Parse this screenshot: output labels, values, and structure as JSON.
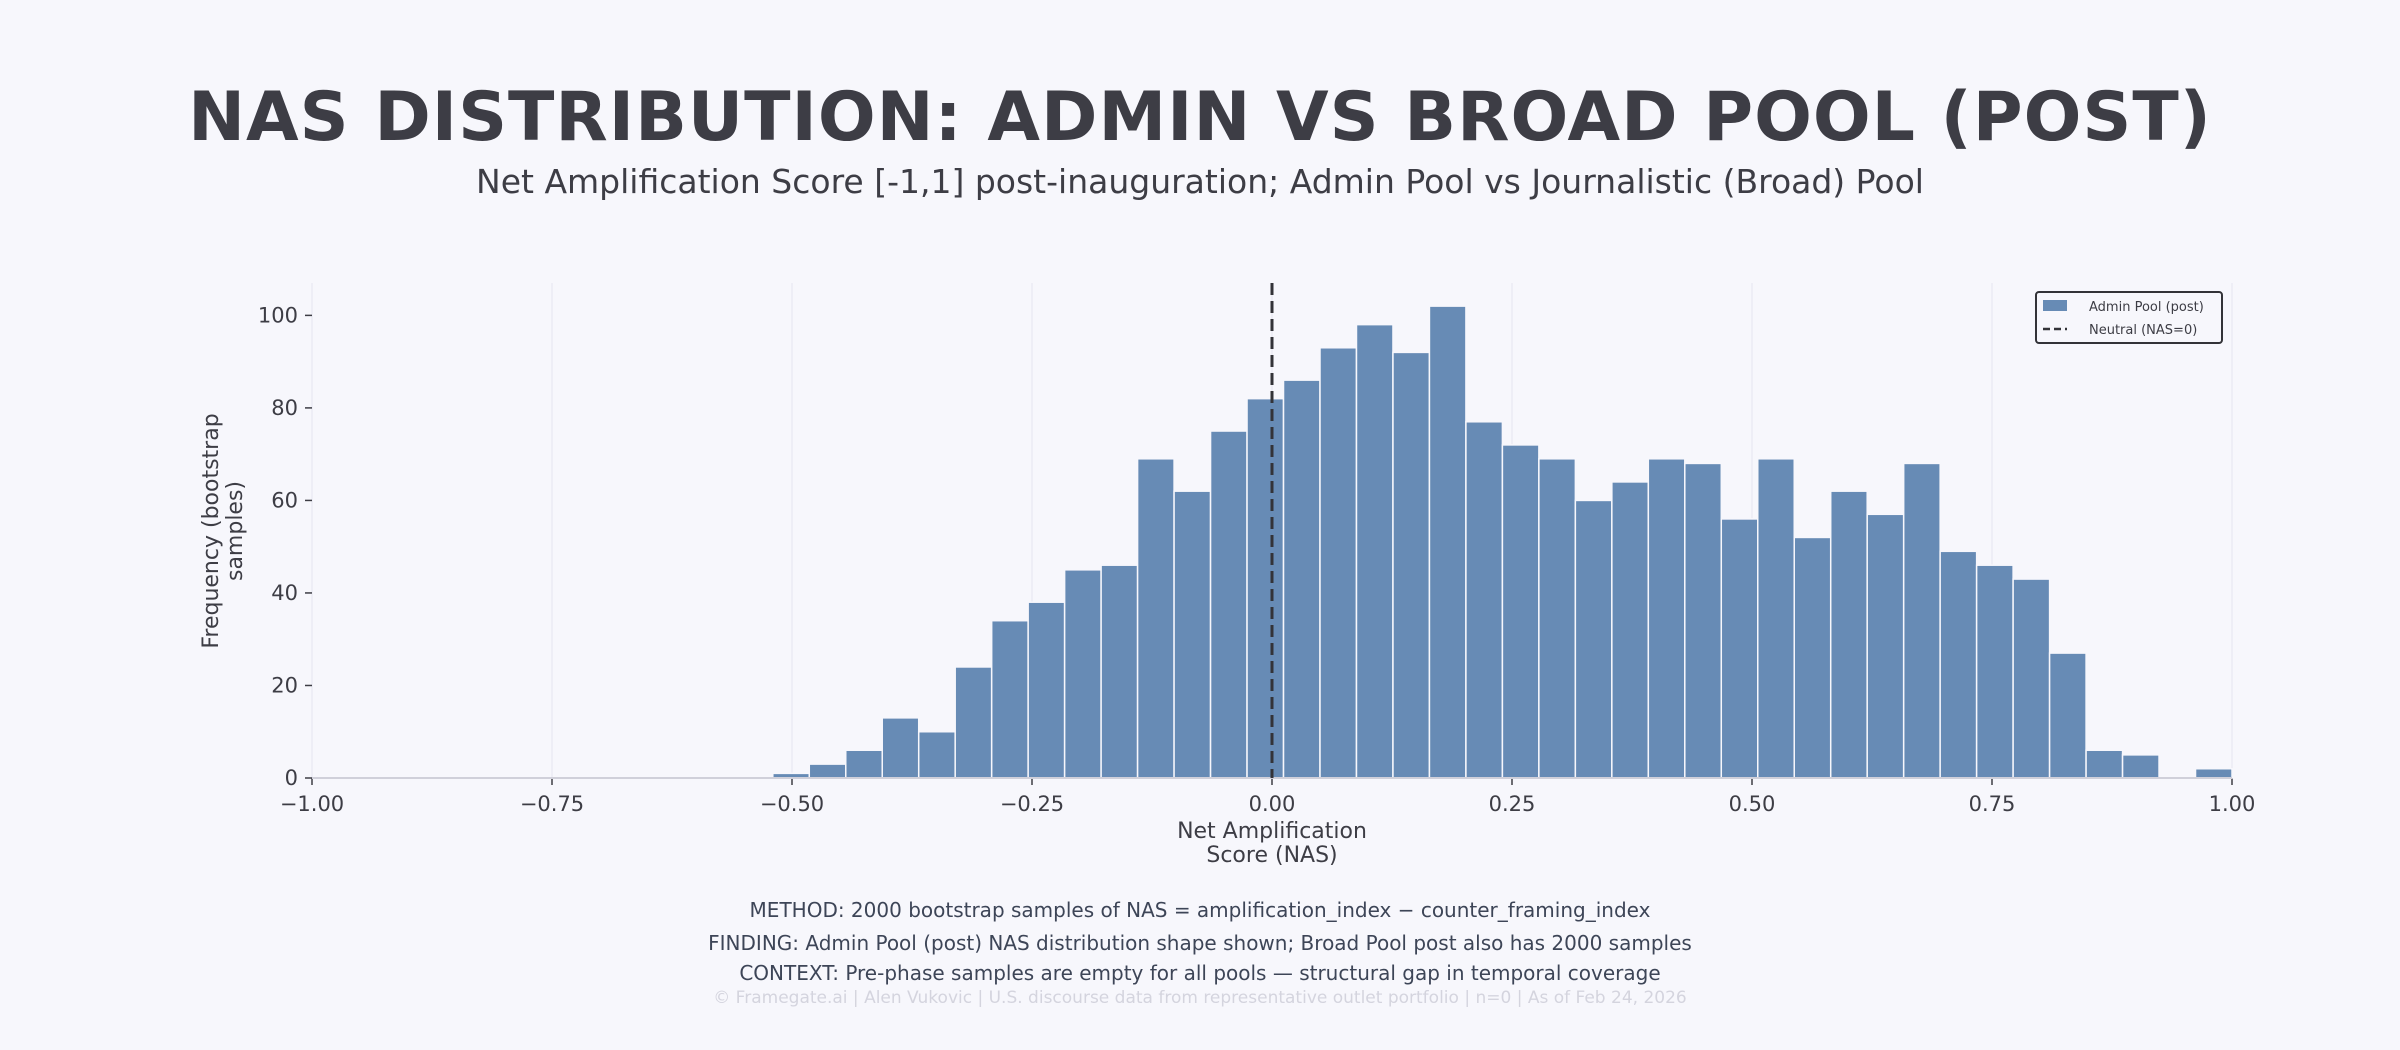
{
  "title": "NAS DISTRIBUTION: ADMIN VS BROAD POOL (POST)",
  "subtitle": "Net Amplification Score [-1,1] post-inauguration; Admin Pool vs Journalistic (Broad) Pool",
  "chart_data": {
    "type": "bar",
    "subtype": "histogram",
    "xlabel": "Net Amplification\nScore (NAS)",
    "ylabel": "Frequency (bootstrap\nsamples)",
    "xlim": [
      -1.0,
      1.0
    ],
    "ylim": [
      0,
      107
    ],
    "xticks": [
      "−1.00",
      "−0.75",
      "−0.50",
      "−0.25",
      "0.00",
      "0.25",
      "0.50",
      "0.75",
      "1.00"
    ],
    "xtick_values": [
      -1.0,
      -0.75,
      -0.5,
      -0.25,
      0.0,
      0.25,
      0.5,
      0.75,
      1.0
    ],
    "yticks": [
      0,
      20,
      40,
      60,
      80,
      100
    ],
    "grid": "vertical-faint",
    "bin_start": -0.52,
    "bin_width": 0.038,
    "series": [
      {
        "name": "Admin Pool (post)",
        "color": "#678bb5",
        "values": [
          1,
          3,
          6,
          13,
          10,
          24,
          34,
          38,
          45,
          46,
          69,
          62,
          75,
          82,
          86,
          93,
          98,
          92,
          102,
          77,
          72,
          69,
          60,
          64,
          69,
          68,
          56,
          69,
          52,
          62,
          57,
          68,
          49,
          46,
          43,
          27,
          6,
          5,
          0,
          2
        ]
      }
    ],
    "reference_line": {
      "name": "Neutral (NAS=0)",
      "x": 0,
      "style": "dashed",
      "color": "#333338"
    },
    "legend": {
      "placement": "top-right",
      "entries": [
        "Admin Pool (post)",
        "Neutral (NAS=0)"
      ]
    }
  },
  "footer": {
    "method": "METHOD: 2000 bootstrap samples of NAS = amplification_index − counter_framing_index",
    "finding": "FINDING: Admin Pool (post) NAS distribution shape shown; Broad Pool post also has 2000 samples",
    "context": "CONTEXT: Pre-phase samples are empty for all pools — structural gap in temporal coverage",
    "credit": "© Framegate.ai | Alen Vukovic | U.S. discourse data from representative outlet portfolio | n=0 | As of Feb 24, 2026"
  }
}
